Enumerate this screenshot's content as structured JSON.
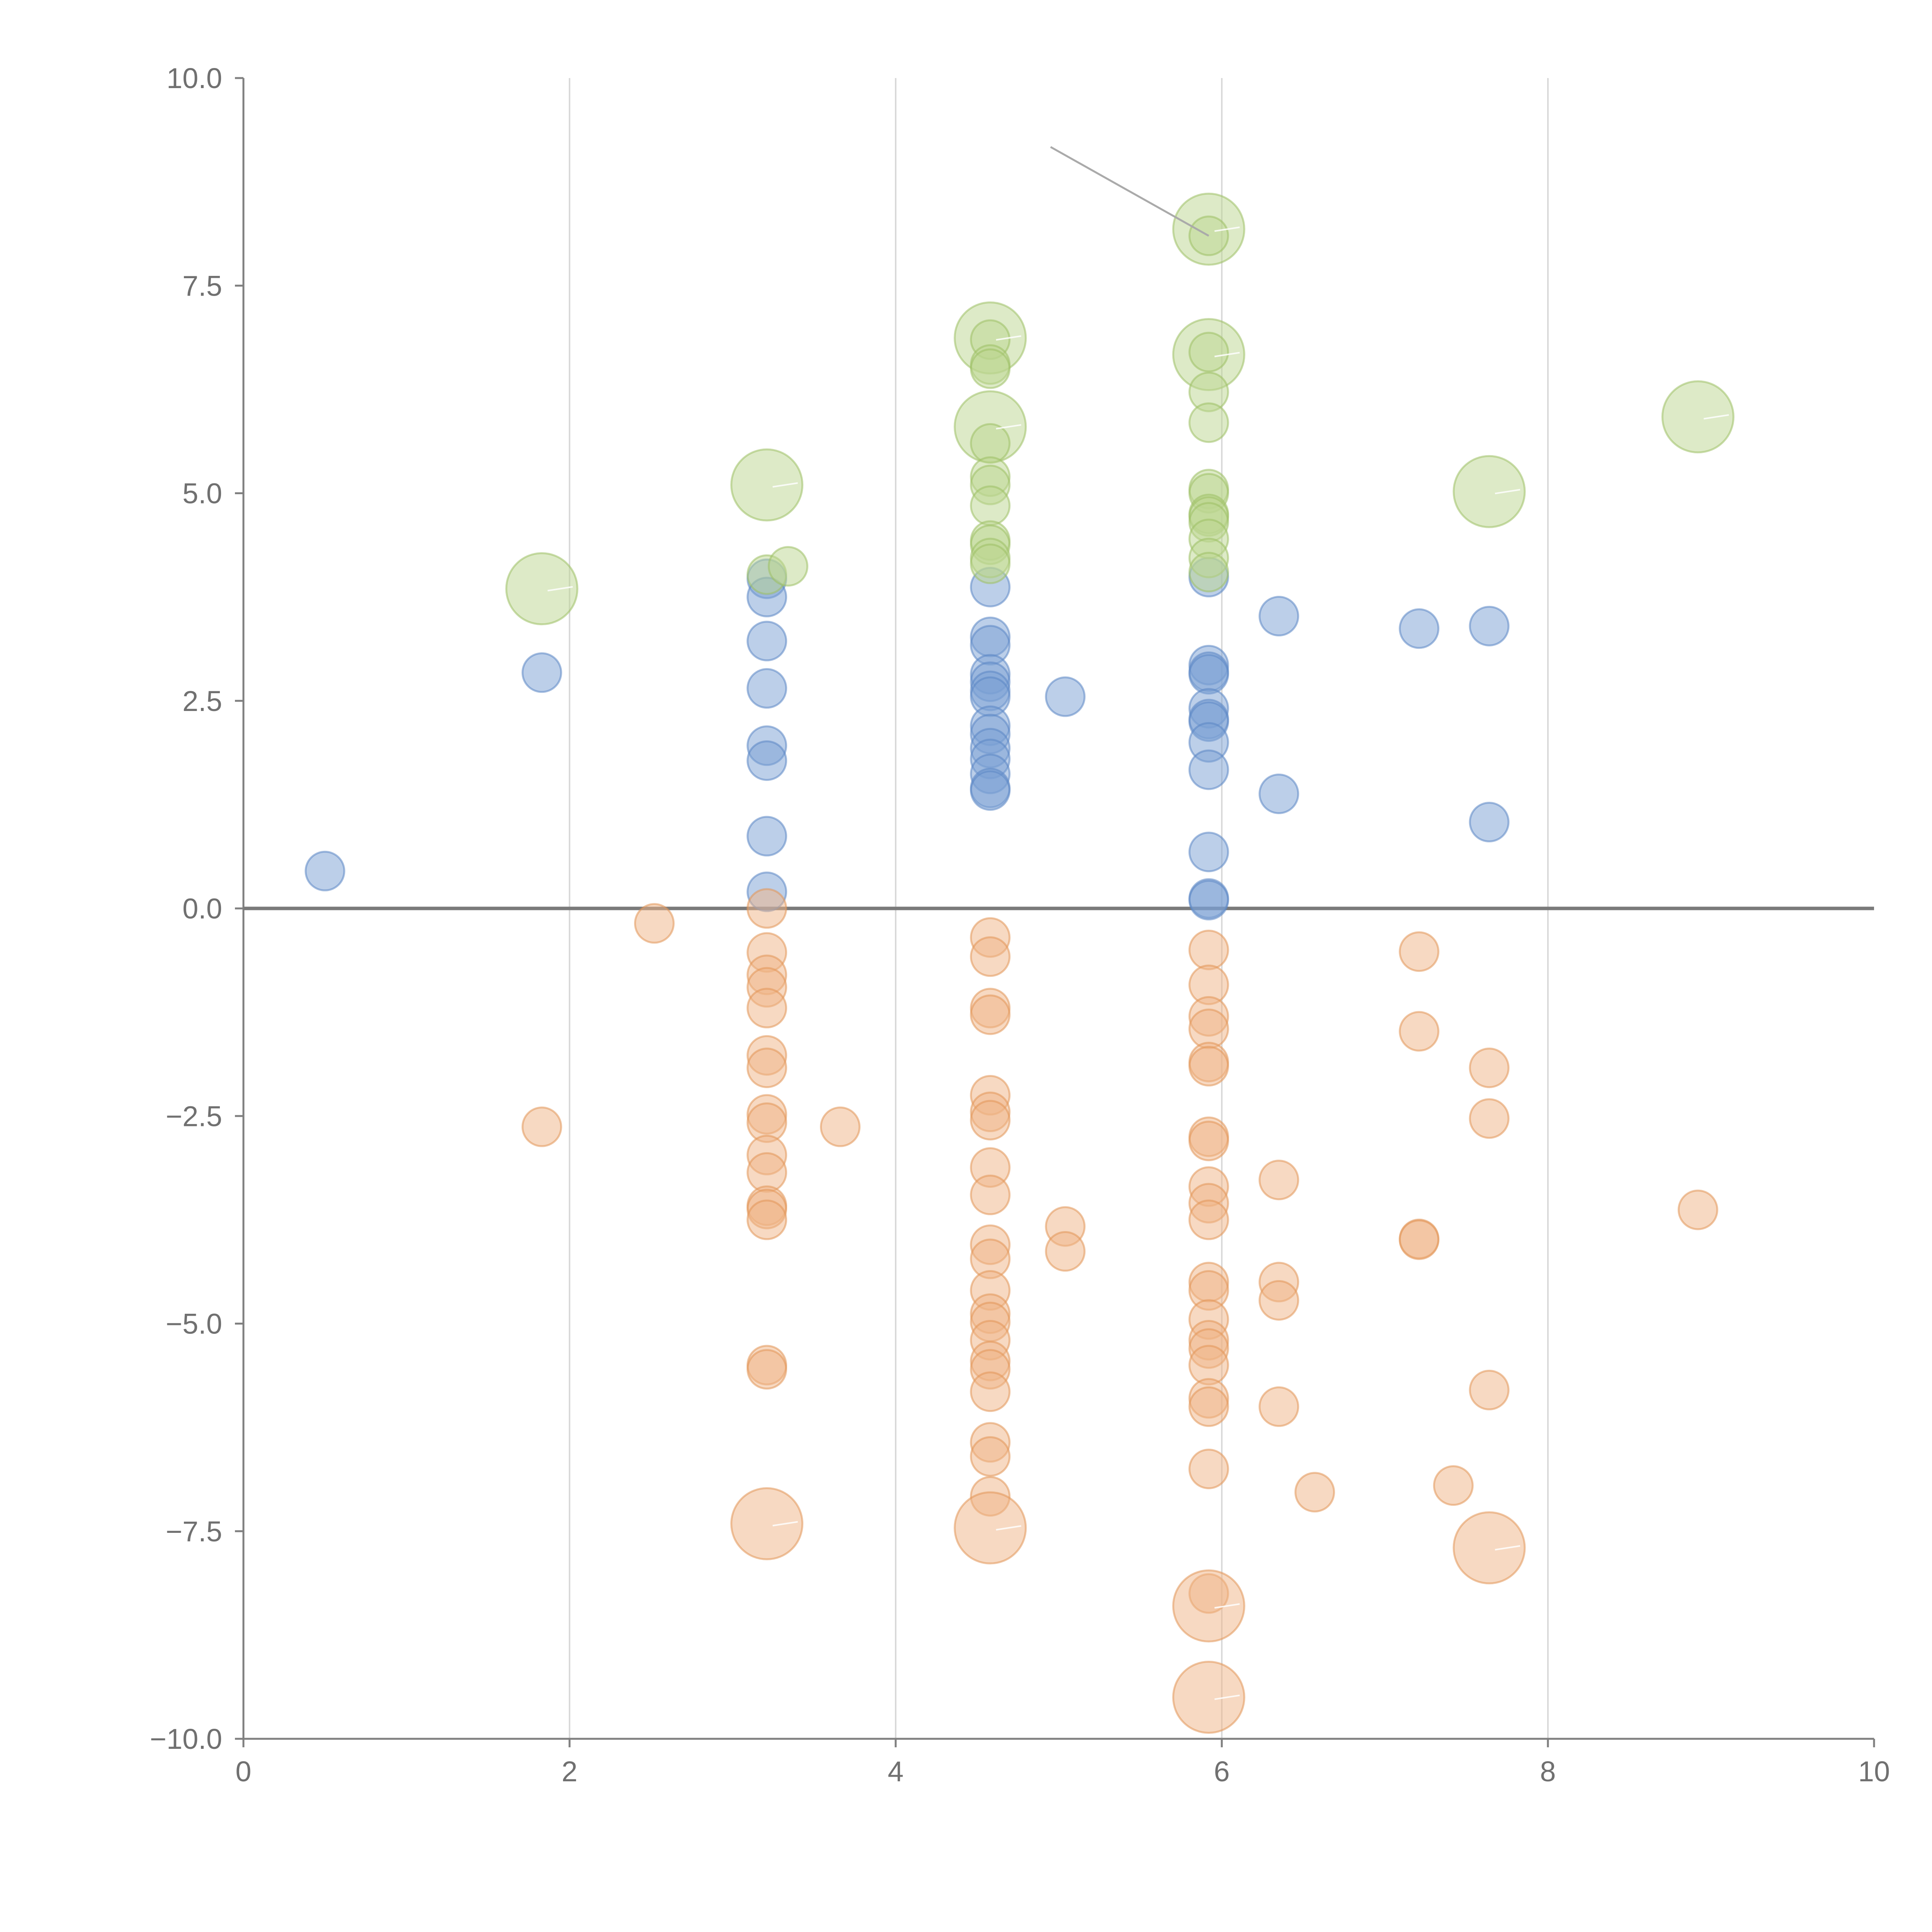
{
  "chart_data": {
    "type": "scatter",
    "subtype": "bubble",
    "title": "",
    "xlabel": "",
    "ylabel": "",
    "xlim": [
      0,
      10
    ],
    "ylim": [
      -10,
      10
    ],
    "x_ticks": [
      "0",
      "2",
      "4",
      "6",
      "8",
      "10"
    ],
    "y_ticks": [
      "10.0",
      "7.5",
      "5.0",
      "2.5",
      "0.0",
      "−2.5",
      "−5.0",
      "−7.5",
      "−10.0"
    ],
    "x_gridlines": [
      2,
      4,
      6,
      8
    ],
    "reference_line_y": 0,
    "series": [
      {
        "name": "blue",
        "color": "#7aa0d4",
        "stroke": "#5b86c5",
        "points": [
          [
            0.5,
            0.45,
            1
          ],
          [
            1.83,
            2.84,
            1
          ],
          [
            3.21,
            3.97,
            1
          ],
          [
            3.21,
            3.75,
            1
          ],
          [
            3.21,
            3.22,
            1
          ],
          [
            3.21,
            2.65,
            1
          ],
          [
            3.21,
            1.96,
            1
          ],
          [
            3.21,
            1.78,
            1
          ],
          [
            3.21,
            0.87,
            1
          ],
          [
            3.21,
            0.2,
            1
          ],
          [
            4.58,
            3.87,
            1
          ],
          [
            4.58,
            3.27,
            1
          ],
          [
            4.58,
            3.17,
            1
          ],
          [
            4.58,
            2.82,
            1
          ],
          [
            4.58,
            2.73,
            1
          ],
          [
            4.58,
            2.62,
            1
          ],
          [
            4.58,
            2.55,
            1
          ],
          [
            4.58,
            2.2,
            1
          ],
          [
            4.58,
            2.1,
            1
          ],
          [
            4.58,
            1.93,
            1
          ],
          [
            4.58,
            1.8,
            1
          ],
          [
            4.58,
            1.62,
            1
          ],
          [
            4.58,
            1.45,
            1
          ],
          [
            4.58,
            1.42,
            1
          ],
          [
            5.04,
            2.55,
            1
          ],
          [
            5.92,
            3.99,
            1
          ],
          [
            5.92,
            2.93,
            1
          ],
          [
            5.92,
            2.85,
            1
          ],
          [
            5.92,
            2.82,
            1
          ],
          [
            5.92,
            2.41,
            1
          ],
          [
            5.92,
            2.28,
            1
          ],
          [
            5.92,
            2.25,
            1
          ],
          [
            5.92,
            2.0,
            1
          ],
          [
            5.92,
            1.67,
            1
          ],
          [
            5.92,
            0.68,
            1
          ],
          [
            5.92,
            0.12,
            1
          ],
          [
            5.92,
            0.1,
            1
          ],
          [
            6.35,
            3.52,
            1
          ],
          [
            6.35,
            1.38,
            1
          ],
          [
            7.21,
            3.37,
            1
          ],
          [
            7.64,
            3.4,
            1
          ],
          [
            7.64,
            1.04,
            1
          ]
        ]
      },
      {
        "name": "orange",
        "color": "#efb386",
        "stroke": "#e29558",
        "points": [
          [
            1.83,
            -2.63,
            1
          ],
          [
            2.52,
            -0.18,
            1
          ],
          [
            3.21,
            0.0,
            1
          ],
          [
            3.21,
            -0.53,
            1
          ],
          [
            3.21,
            -0.8,
            1
          ],
          [
            3.21,
            -0.95,
            1
          ],
          [
            3.21,
            -1.2,
            1
          ],
          [
            3.21,
            -1.77,
            1
          ],
          [
            3.21,
            -1.92,
            1
          ],
          [
            3.21,
            -2.48,
            1
          ],
          [
            3.21,
            -2.58,
            1
          ],
          [
            3.21,
            -2.97,
            1
          ],
          [
            3.21,
            -3.18,
            1
          ],
          [
            3.21,
            -3.58,
            1
          ],
          [
            3.21,
            -3.62,
            1
          ],
          [
            3.21,
            -3.75,
            1
          ],
          [
            3.21,
            -5.5,
            1
          ],
          [
            3.21,
            -5.55,
            1
          ],
          [
            3.21,
            -7.41,
            3
          ],
          [
            3.66,
            -2.63,
            1
          ],
          [
            4.58,
            -0.35,
            1
          ],
          [
            4.58,
            -0.58,
            1
          ],
          [
            4.58,
            -1.2,
            1
          ],
          [
            4.58,
            -1.28,
            1
          ],
          [
            4.58,
            -2.25,
            1
          ],
          [
            4.58,
            -2.45,
            1
          ],
          [
            4.58,
            -2.55,
            1
          ],
          [
            4.58,
            -3.12,
            1
          ],
          [
            4.58,
            -3.45,
            1
          ],
          [
            4.58,
            -4.05,
            1
          ],
          [
            4.58,
            -4.22,
            1
          ],
          [
            4.58,
            -4.6,
            1
          ],
          [
            4.58,
            -4.88,
            1
          ],
          [
            4.58,
            -4.98,
            1
          ],
          [
            4.58,
            -5.2,
            1
          ],
          [
            4.58,
            -5.45,
            1
          ],
          [
            4.58,
            -5.55,
            1
          ],
          [
            4.58,
            -5.82,
            1
          ],
          [
            4.58,
            -6.43,
            1
          ],
          [
            4.58,
            -6.6,
            1
          ],
          [
            4.58,
            -7.08,
            1
          ],
          [
            4.58,
            -7.46,
            3
          ],
          [
            5.04,
            -3.83,
            1
          ],
          [
            5.04,
            -4.13,
            1
          ],
          [
            5.92,
            -0.5,
            1
          ],
          [
            5.92,
            -0.92,
            1
          ],
          [
            5.92,
            -1.3,
            1
          ],
          [
            5.92,
            -1.45,
            1
          ],
          [
            5.92,
            -1.85,
            1
          ],
          [
            5.92,
            -1.9,
            1
          ],
          [
            5.92,
            -2.75,
            1
          ],
          [
            5.92,
            -2.8,
            1
          ],
          [
            5.92,
            -3.35,
            1
          ],
          [
            5.92,
            -3.55,
            1
          ],
          [
            5.92,
            -3.75,
            1
          ],
          [
            5.92,
            -4.5,
            1
          ],
          [
            5.92,
            -4.6,
            1
          ],
          [
            5.92,
            -4.95,
            1
          ],
          [
            5.92,
            -5.2,
            1
          ],
          [
            5.92,
            -5.3,
            1
          ],
          [
            5.92,
            -5.5,
            1
          ],
          [
            5.92,
            -5.9,
            1
          ],
          [
            5.92,
            -6.0,
            1
          ],
          [
            5.92,
            -6.75,
            1
          ],
          [
            5.92,
            -8.25,
            1
          ],
          [
            5.92,
            -8.4,
            3
          ],
          [
            5.92,
            -9.5,
            3
          ],
          [
            6.35,
            -3.27,
            1
          ],
          [
            6.35,
            -4.5,
            1
          ],
          [
            6.35,
            -4.72,
            1
          ],
          [
            6.35,
            -6.0,
            1
          ],
          [
            6.57,
            -7.03,
            1
          ],
          [
            7.21,
            -0.52,
            1
          ],
          [
            7.21,
            -1.48,
            1
          ],
          [
            7.21,
            -3.98,
            1
          ],
          [
            7.21,
            -3.99,
            1
          ],
          [
            7.42,
            -6.95,
            1
          ],
          [
            7.64,
            -1.92,
            1
          ],
          [
            7.64,
            -2.53,
            1
          ],
          [
            7.64,
            -5.8,
            1
          ],
          [
            7.64,
            -7.7,
            3
          ],
          [
            8.92,
            -3.63,
            1
          ]
        ]
      },
      {
        "name": "green",
        "color": "#bcd68f",
        "stroke": "#9cc064",
        "points": [
          [
            1.83,
            3.85,
            3
          ],
          [
            3.21,
            4.02,
            1
          ],
          [
            3.34,
            4.12,
            1
          ],
          [
            3.21,
            5.1,
            3
          ],
          [
            4.58,
            6.87,
            3
          ],
          [
            4.58,
            6.85,
            1
          ],
          [
            4.58,
            6.55,
            1
          ],
          [
            4.58,
            6.5,
            1
          ],
          [
            4.58,
            5.8,
            3
          ],
          [
            4.58,
            5.6,
            1
          ],
          [
            4.58,
            5.2,
            1
          ],
          [
            4.58,
            5.1,
            1
          ],
          [
            4.58,
            4.85,
            1
          ],
          [
            4.58,
            4.43,
            1
          ],
          [
            4.58,
            4.38,
            1
          ],
          [
            4.58,
            4.22,
            1
          ],
          [
            4.58,
            4.15,
            1
          ],
          [
            5.92,
            8.18,
            3
          ],
          [
            5.92,
            8.1,
            1
          ],
          [
            5.92,
            6.67,
            3
          ],
          [
            5.92,
            6.7,
            1
          ],
          [
            5.92,
            6.22,
            1
          ],
          [
            5.92,
            5.85,
            1
          ],
          [
            5.92,
            5.05,
            1
          ],
          [
            5.92,
            5.0,
            1
          ],
          [
            5.92,
            4.75,
            1
          ],
          [
            5.92,
            4.72,
            1
          ],
          [
            5.92,
            4.65,
            1
          ],
          [
            5.92,
            4.45,
            1
          ],
          [
            5.92,
            4.22,
            1
          ],
          [
            5.92,
            4.05,
            1
          ],
          [
            7.64,
            5.02,
            3
          ],
          [
            8.92,
            5.92,
            3
          ]
        ]
      }
    ]
  }
}
